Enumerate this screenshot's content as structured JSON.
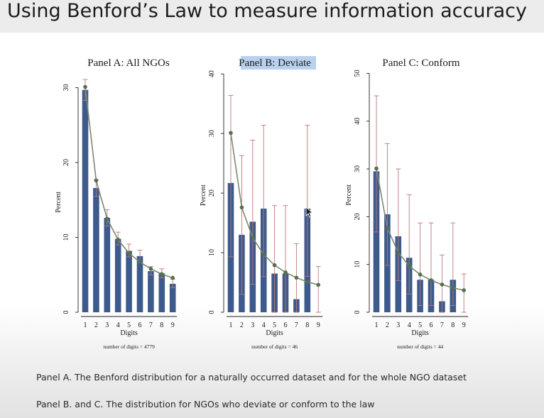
{
  "slide": {
    "title": "Using Benford’s Law to measure information accuracy",
    "caption_a": "Panel A. The Benford distribution for a naturally occurred dataset and for the whole NGO dataset",
    "caption_b": "Panel B. and C. The distribution for NGOs who deviate or conform to the law"
  },
  "colors": {
    "bar": "#3d5a8c",
    "benford_line": "#7d8a72",
    "benford_dot": "#55704a",
    "error_bar": "#b9787a",
    "highlight": "#b9d1ee"
  },
  "chart_data": [
    {
      "type": "bar",
      "title": "Panel A: All NGOs",
      "xlabel": "Digits",
      "ylabel": "Percent",
      "note": "number of digits = 4779",
      "categories": [
        "1",
        "2",
        "3",
        "4",
        "5",
        "6",
        "7",
        "8",
        "9"
      ],
      "ylim": [
        0,
        31
      ],
      "yticks": [
        0,
        10,
        20,
        30
      ],
      "values": [
        29.7,
        16.6,
        12.6,
        9.8,
        8.2,
        7.5,
        5.5,
        5.2,
        3.8
      ],
      "error_low": [
        28.3,
        15.5,
        11.5,
        9.0,
        7.4,
        6.7,
        5.0,
        4.6,
        3.3
      ],
      "error_high": [
        31.1,
        17.7,
        13.7,
        10.7,
        9.1,
        8.3,
        6.1,
        5.8,
        4.4
      ],
      "benford": [
        30.1,
        17.6,
        12.5,
        9.7,
        7.9,
        6.7,
        5.8,
        5.1,
        4.6
      ],
      "grid": false,
      "legend": "none"
    },
    {
      "type": "bar",
      "title": "Panel B: Deviate",
      "xlabel": "Digits",
      "ylabel": "Percent",
      "note": "number of digits = 46",
      "categories": [
        "1",
        "2",
        "3",
        "4",
        "5",
        "6",
        "7",
        "8",
        "9"
      ],
      "ylim": [
        0,
        40.5
      ],
      "yticks": [
        0,
        10,
        20,
        30,
        40
      ],
      "values": [
        21.7,
        13.0,
        15.2,
        17.4,
        6.5,
        6.5,
        2.2,
        17.4,
        0
      ],
      "error_low": [
        9.3,
        3.0,
        4.7,
        6.0,
        0,
        0,
        0,
        6.0,
        0
      ],
      "error_high": [
        36.4,
        26.3,
        28.9,
        31.4,
        17.9,
        17.9,
        11.5,
        31.4,
        7.7
      ],
      "benford": [
        30.1,
        17.6,
        12.5,
        9.7,
        7.9,
        6.7,
        5.8,
        5.1,
        4.6
      ],
      "grid": false,
      "legend": "none"
    },
    {
      "type": "bar",
      "title": "Panel C: Conform",
      "xlabel": "Digits",
      "ylabel": "Percent",
      "note": "number of digits = 44",
      "categories": [
        "1",
        "2",
        "3",
        "4",
        "5",
        "6",
        "7",
        "8",
        "9"
      ],
      "ylim": [
        0,
        50.5
      ],
      "yticks": [
        0,
        10,
        20,
        30,
        40,
        50
      ],
      "values": [
        29.5,
        20.5,
        15.9,
        11.4,
        6.8,
        6.8,
        2.3,
        6.8,
        0
      ],
      "error_low": [
        16.8,
        9.8,
        6.6,
        3.8,
        1.4,
        1.4,
        0,
        1.4,
        0
      ],
      "error_high": [
        45.3,
        35.3,
        30.0,
        24.6,
        18.7,
        18.7,
        12.0,
        18.7,
        8.0
      ],
      "benford": [
        30.1,
        17.6,
        12.5,
        9.7,
        7.9,
        6.7,
        5.8,
        5.1,
        4.6
      ],
      "grid": false,
      "legend": "none"
    }
  ]
}
